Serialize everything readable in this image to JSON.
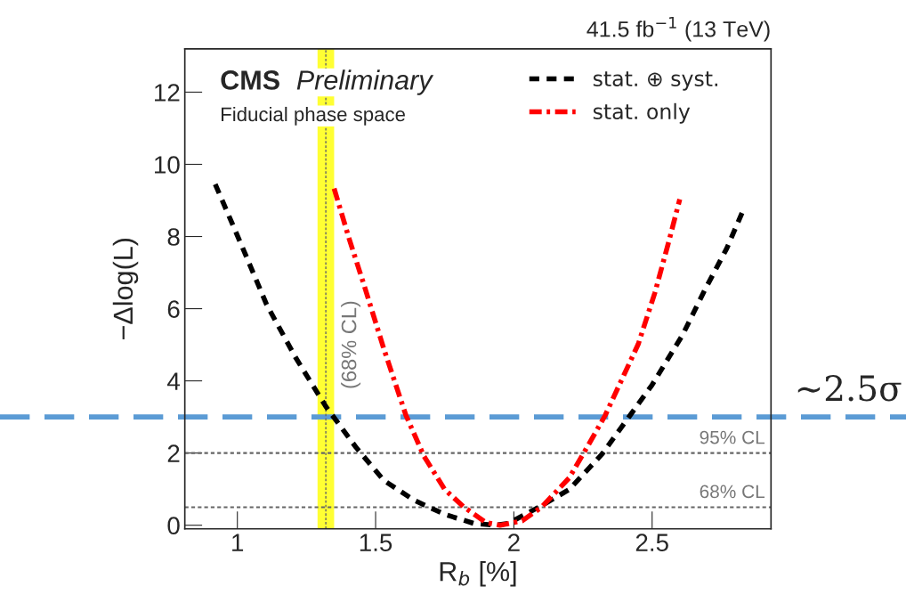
{
  "chart_data": {
    "type": "line",
    "xlabel": "R$_{b}$ [%]",
    "ylabel": "−Δlog(L)",
    "annotations": [
      "CMS",
      "Preliminary",
      "Fiducial phase space",
      "41.5 fb$^{−1}$ (13 TeV)"
    ],
    "series": [
      {
        "name": "stat. ⊕ syst.",
        "color": "#000000",
        "line_style": "dashed",
        "x": [
          0.92,
          1.01,
          1.106,
          1.212,
          1.32,
          1.43,
          1.53,
          1.64,
          1.75,
          1.855,
          1.93,
          1.98,
          2.1,
          2.2,
          2.32,
          2.42,
          2.5,
          2.61,
          2.69,
          2.77,
          2.83
        ],
        "values": [
          9.45,
          7.85,
          6.11,
          4.63,
          3.29,
          2.15,
          1.24,
          0.69,
          0.3,
          0.05,
          0.0,
          0.05,
          0.54,
          0.99,
          1.98,
          3.04,
          3.89,
          5.27,
          6.51,
          7.67,
          8.74
        ]
      },
      {
        "name": "stat. only",
        "color": "#ff0000",
        "line_style": "dashdot",
        "x": [
          1.35,
          1.405,
          1.46,
          1.53,
          1.61,
          1.675,
          1.75,
          1.82,
          1.9,
          1.95,
          2.03,
          2.1,
          2.2,
          2.27,
          2.33,
          2.39,
          2.45,
          2.51,
          2.56,
          2.6
        ],
        "values": [
          9.33,
          7.92,
          6.61,
          4.88,
          3.04,
          1.91,
          0.99,
          0.5,
          0.07,
          0.0,
          0.12,
          0.5,
          1.31,
          2.23,
          3.04,
          4.03,
          5.02,
          6.44,
          7.85,
          9.03
        ]
      }
    ],
    "ref_lines": [
      {
        "axis": "y",
        "value": 3,
        "label": "~2.5σ",
        "color": "#5b9bd5",
        "line_style": "dashed"
      },
      {
        "axis": "y",
        "value": 2,
        "label": "95% CL",
        "color": "#666666",
        "line_style": "dashed"
      },
      {
        "axis": "y",
        "value": 0.5,
        "label": "68% CL",
        "color": "#666666",
        "line_style": "dashed"
      },
      {
        "axis": "x",
        "value": 1.32,
        "color": "#666666",
        "line_style": "dashed"
      }
    ],
    "bands": [
      {
        "axis": "x",
        "from": 1.29,
        "to": 1.35,
        "label": "(68% CL)",
        "color": "#ffff33"
      }
    ],
    "xlim": [
      0.81,
      2.93
    ],
    "xticks": [
      1,
      1.5,
      2,
      2.5
    ],
    "ylim": [
      -0.1,
      13.2
    ],
    "yticks": [
      0,
      2,
      4,
      6,
      8,
      10,
      12
    ],
    "grid": false,
    "legend": "top",
    "marker": "none"
  }
}
